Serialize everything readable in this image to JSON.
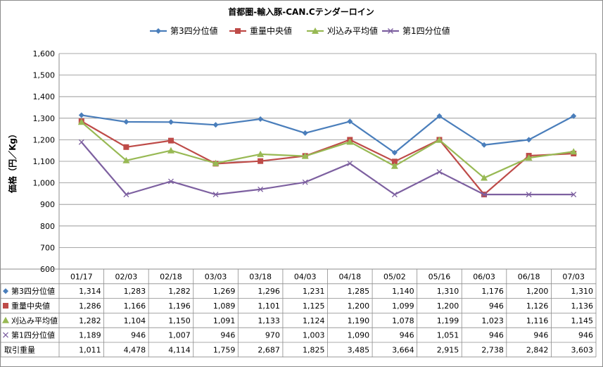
{
  "chart_data": {
    "type": "line",
    "title": "首都圏-輸入豚-CAN.Cテンダーロイン",
    "ylabel": "価格（円／Kg）",
    "ylim": [
      600,
      1600
    ],
    "ystep": 100,
    "y_ticks": [
      "600",
      "700",
      "800",
      "900",
      "1,000",
      "1,100",
      "1,200",
      "1,300",
      "1,400",
      "1,500",
      "1,600"
    ],
    "grid": true,
    "legend_position": "top",
    "categories": [
      "01/17",
      "02/03",
      "02/18",
      "03/03",
      "03/18",
      "04/03",
      "04/18",
      "05/02",
      "05/16",
      "06/03",
      "06/18",
      "07/03"
    ],
    "series": [
      {
        "name": "第3四分位値",
        "color": "#4a7ebb",
        "marker": "diamond",
        "values": [
          1314,
          1283,
          1282,
          1269,
          1296,
          1231,
          1285,
          1140,
          1310,
          1176,
          1200,
          1310
        ],
        "labels": [
          "1,314",
          "1,283",
          "1,282",
          "1,269",
          "1,296",
          "1,231",
          "1,285",
          "1,140",
          "1,310",
          "1,176",
          "1,200",
          "1,310"
        ]
      },
      {
        "name": "重量中央値",
        "color": "#be4b48",
        "marker": "square",
        "values": [
          1286,
          1166,
          1196,
          1089,
          1101,
          1125,
          1200,
          1099,
          1200,
          946,
          1126,
          1136
        ],
        "labels": [
          "1,286",
          "1,166",
          "1,196",
          "1,089",
          "1,101",
          "1,125",
          "1,200",
          "1,099",
          "1,200",
          "946",
          "1,126",
          "1,136"
        ]
      },
      {
        "name": "刈込み平均値",
        "color": "#98b954",
        "marker": "triangle",
        "values": [
          1282,
          1104,
          1150,
          1091,
          1133,
          1124,
          1190,
          1078,
          1199,
          1023,
          1116,
          1145
        ],
        "labels": [
          "1,282",
          "1,104",
          "1,150",
          "1,091",
          "1,133",
          "1,124",
          "1,190",
          "1,078",
          "1,199",
          "1,023",
          "1,116",
          "1,145"
        ]
      },
      {
        "name": "第1四分位値",
        "color": "#7d60a0",
        "marker": "x",
        "values": [
          1189,
          946,
          1007,
          946,
          970,
          1003,
          1090,
          946,
          1051,
          946,
          946,
          946
        ],
        "labels": [
          "1,189",
          "946",
          "1,007",
          "946",
          "970",
          "1,003",
          "1,090",
          "946",
          "1,051",
          "946",
          "946",
          "946"
        ]
      }
    ],
    "extra_rows": [
      {
        "name": "取引重量",
        "values": [
          1011,
          4478,
          4114,
          1759,
          2687,
          1825,
          3485,
          3664,
          2915,
          2738,
          2842,
          3603
        ],
        "labels": [
          "1,011",
          "4,478",
          "4,114",
          "1,759",
          "2,687",
          "1,825",
          "3,485",
          "3,664",
          "2,915",
          "2,738",
          "2,842",
          "3,603"
        ]
      }
    ]
  }
}
